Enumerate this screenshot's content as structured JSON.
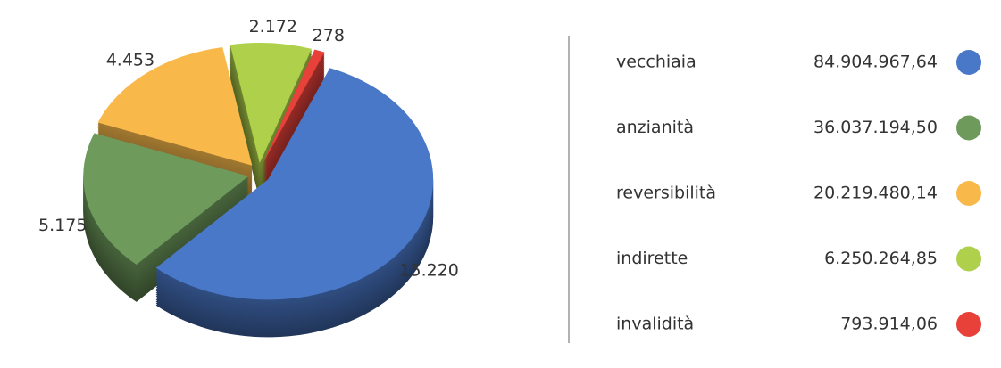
{
  "chart_data": {
    "type": "pie3d",
    "categories": [
      "vecchiaia",
      "anzianità",
      "reversibilità",
      "indirette",
      "invalidità"
    ],
    "values": [
      15220,
      5175,
      4453,
      2172,
      278
    ],
    "value_labels": [
      "15.220",
      "5.175",
      "4.453",
      "2.172",
      "278"
    ],
    "colors": [
      "#4a78c8",
      "#6e9a5c",
      "#f8b94a",
      "#aed04a",
      "#e8413a"
    ],
    "amounts": [
      84904967.64,
      36037194.5,
      20219480.14,
      6250264.85,
      793914.06
    ],
    "amount_labels": [
      "84.904.967,64",
      "36.037.194,50",
      "20.219.480,14",
      "6.250.264,85",
      "793.914,06"
    ]
  }
}
